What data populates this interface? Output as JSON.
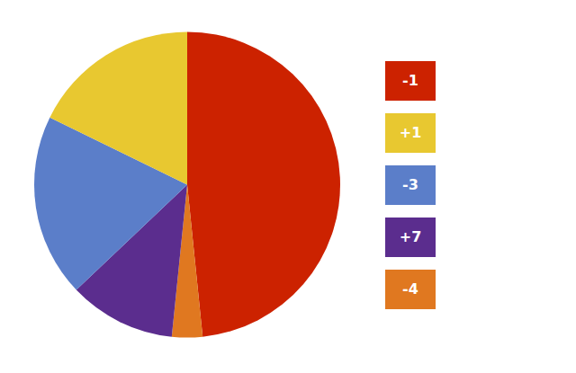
{
  "chart_data": {
    "type": "pie",
    "values": [
      30,
      2,
      7,
      12,
      11
    ],
    "colors": [
      "#CC2200",
      "#E07820",
      "#5B2D8E",
      "#5B7EC9",
      "#E8C830"
    ],
    "annotations": [
      {
        "text": "-1",
        "color": "#CC2200"
      },
      {
        "text": "+1",
        "color": "#E8C830"
      },
      {
        "text": "-3",
        "color": "#5B7EC9"
      },
      {
        "text": "+7",
        "color": "#5B2D8E"
      },
      {
        "text": "-4",
        "color": "#E07820"
      }
    ]
  }
}
